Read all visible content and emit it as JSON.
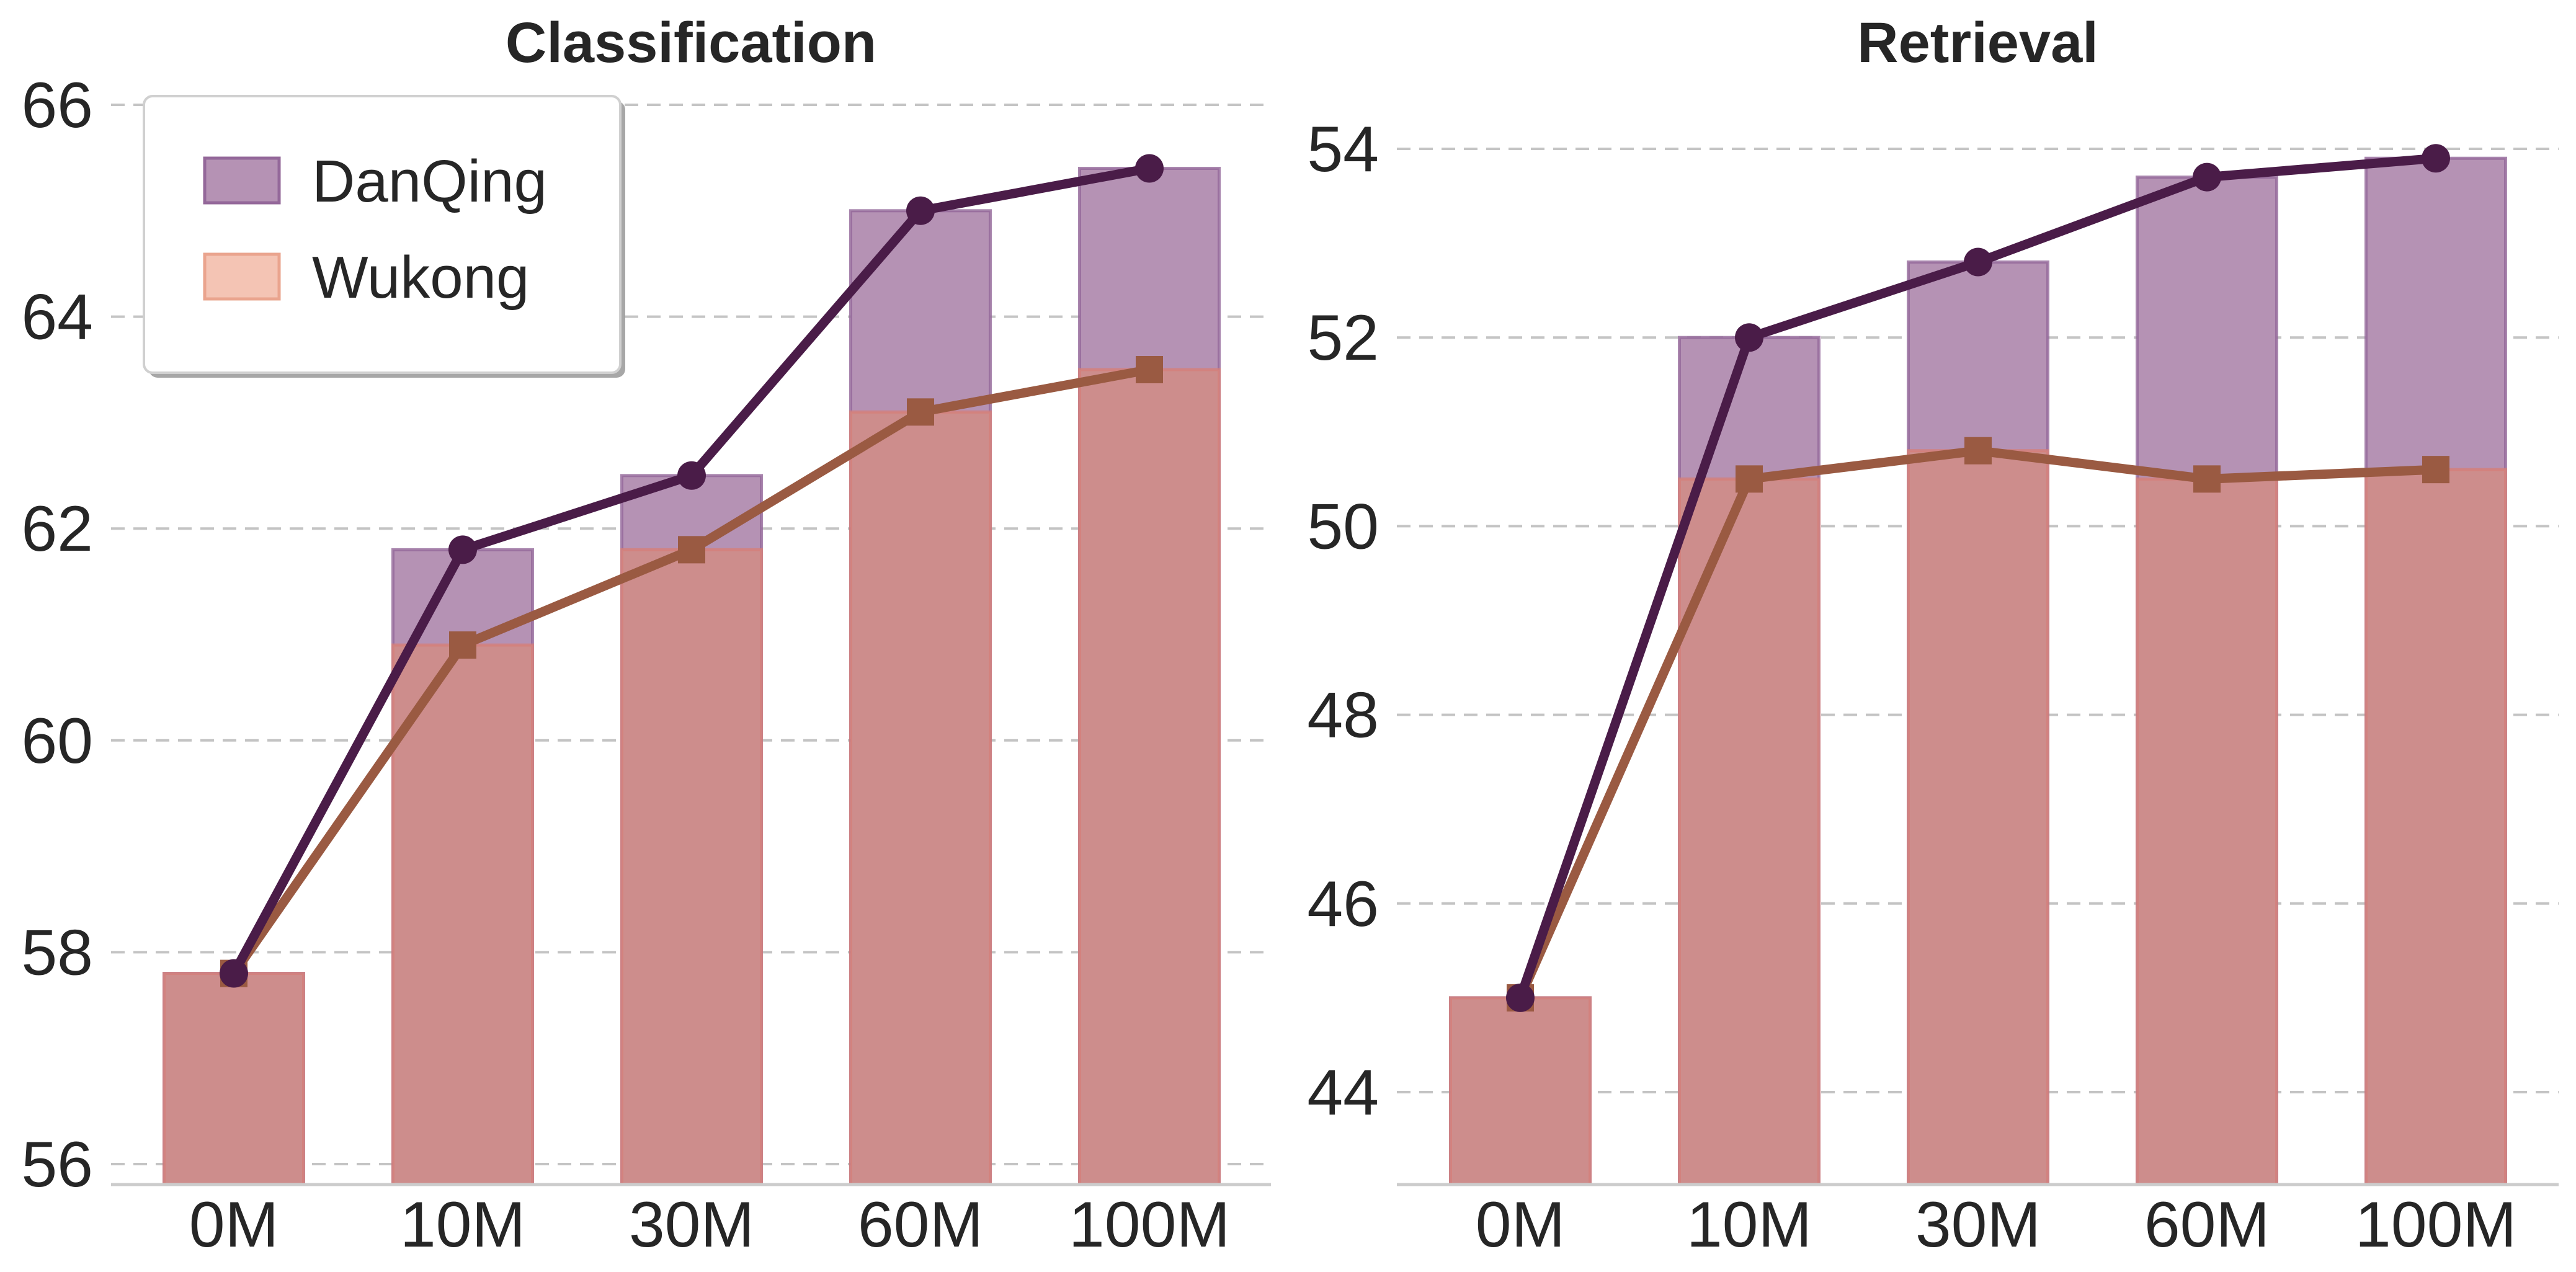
{
  "chart_data": [
    {
      "type": "bar",
      "title": "Classification",
      "categories": [
        "0M",
        "10M",
        "30M",
        "60M",
        "100M"
      ],
      "yticks": [
        56,
        58,
        60,
        62,
        64,
        66
      ],
      "ylim": [
        55.8,
        66.4
      ],
      "grid": "horizontal dashed",
      "legend": {
        "placement": "top-left",
        "entries": [
          "DanQing",
          "Wukong"
        ]
      },
      "series": [
        {
          "name": "DanQing",
          "values": [
            57.8,
            61.8,
            62.5,
            65.0,
            65.4
          ],
          "bar_color": "#b592b4",
          "edge_color": "#94689a",
          "line_color": "#4a1c48",
          "marker": "circle"
        },
        {
          "name": "Wukong",
          "values": [
            57.8,
            60.9,
            61.8,
            63.1,
            63.5
          ],
          "bar_color": "#cd8d8c",
          "edge_color": "#d4807a",
          "line_color": "#9a5a42",
          "marker": "square",
          "legend_color": "#f4c4b4"
        }
      ]
    },
    {
      "type": "bar",
      "title": "Retrieval",
      "categories": [
        "0M",
        "10M",
        "30M",
        "60M",
        "100M"
      ],
      "yticks": [
        44,
        46,
        48,
        50,
        52,
        54
      ],
      "ylim": [
        43.0,
        54.7
      ],
      "grid": "horizontal dashed",
      "series": [
        {
          "name": "DanQing",
          "values": [
            45.0,
            52.0,
            52.8,
            53.7,
            53.9
          ],
          "bar_color": "#b592b4",
          "edge_color": "#94689a",
          "line_color": "#4a1c48",
          "marker": "circle"
        },
        {
          "name": "Wukong",
          "values": [
            45.0,
            50.5,
            50.8,
            50.5,
            50.6
          ],
          "bar_color": "#cd8d8c",
          "edge_color": "#d4807a",
          "line_color": "#9a5a42",
          "marker": "square"
        }
      ]
    }
  ]
}
